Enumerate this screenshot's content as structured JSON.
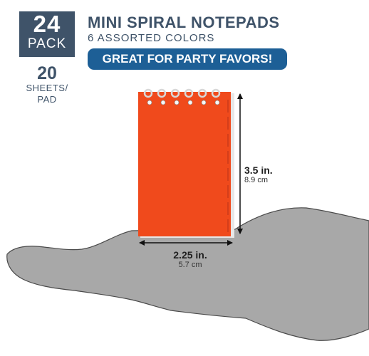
{
  "badge": {
    "count": "24",
    "unit": "PACK"
  },
  "sheets": {
    "count": "20",
    "unit_line1": "SHEETS/",
    "unit_line2": "PAD"
  },
  "header": {
    "title": "MINI SPIRAL NOTEPADS",
    "subtitle": "6 ASSORTED COLORS",
    "banner": "GREAT FOR PARTY FAVORS!"
  },
  "dimensions": {
    "height_in": "3.5 in.",
    "height_cm": "8.9 cm",
    "width_in": "2.25 in.",
    "width_cm": "5.7 cm"
  },
  "colors": {
    "navy": "#3f5369",
    "banner_blue": "#1d5f96",
    "notepad_red": "#f04a1c",
    "hand_gray": "#a8a8a8"
  }
}
